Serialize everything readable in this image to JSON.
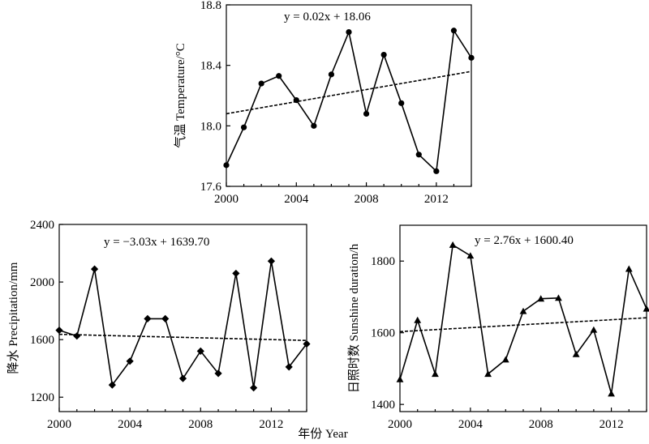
{
  "shared_xlabel": "年份 Year",
  "chart_data": [
    {
      "type": "line",
      "marker": "circle",
      "ylabel": "气温 Temperature/°C",
      "equation": "y = 0.02x + 18.06",
      "xlim": [
        2000,
        2014
      ],
      "ylim": [
        17.6,
        18.8
      ],
      "xticks": [
        2000,
        2004,
        2008,
        2012
      ],
      "yticks": [
        17.6,
        18.0,
        18.4,
        18.8
      ],
      "ytick_labels": [
        "17.6",
        "18.0",
        "18.4",
        "18.8"
      ],
      "x": [
        2000,
        2001,
        2002,
        2003,
        2004,
        2005,
        2006,
        2007,
        2008,
        2009,
        2010,
        2011,
        2012,
        2013,
        2014
      ],
      "y": [
        17.74,
        17.99,
        18.28,
        18.33,
        18.17,
        18.0,
        18.34,
        18.62,
        18.08,
        18.47,
        18.15,
        17.81,
        17.7,
        18.63,
        18.45
      ],
      "trend": {
        "slope": 0.02,
        "intercept": 18.06
      }
    },
    {
      "type": "line",
      "marker": "diamond",
      "ylabel": "降水 Precipitation/mm",
      "equation": "y = −3.03x + 1639.70",
      "xlim": [
        2000,
        2014
      ],
      "ylim": [
        1100,
        2400
      ],
      "xticks": [
        2000,
        2004,
        2008,
        2012
      ],
      "yticks": [
        1200,
        1600,
        2000,
        2400
      ],
      "ytick_labels": [
        "1200",
        "1600",
        "2000",
        "2400"
      ],
      "x": [
        2000,
        2001,
        2002,
        2003,
        2004,
        2005,
        2006,
        2007,
        2008,
        2009,
        2010,
        2011,
        2012,
        2013,
        2014
      ],
      "y": [
        1665,
        1625,
        2090,
        1285,
        1450,
        1745,
        1745,
        1330,
        1520,
        1365,
        2060,
        1265,
        2145,
        1410,
        1570
      ],
      "trend": {
        "slope": -3.03,
        "intercept": 1639.7
      }
    },
    {
      "type": "line",
      "marker": "triangle",
      "ylabel": "日照时数 Sunshine duration/h",
      "equation": "y = 2.76x + 1600.40",
      "xlim": [
        2000,
        2014
      ],
      "ylim": [
        1380,
        1900
      ],
      "xticks": [
        2000,
        2004,
        2008,
        2012
      ],
      "yticks": [
        1400,
        1600,
        1800
      ],
      "ytick_labels": [
        "1400",
        "1600",
        "1800"
      ],
      "x": [
        2000,
        2001,
        2002,
        2003,
        2004,
        2005,
        2006,
        2007,
        2008,
        2009,
        2010,
        2011,
        2012,
        2013,
        2014
      ],
      "y": [
        1470,
        1635,
        1485,
        1845,
        1815,
        1485,
        1525,
        1660,
        1695,
        1697,
        1540,
        1608,
        1430,
        1778,
        1667
      ],
      "trend": {
        "slope": 2.76,
        "intercept": 1600.4
      }
    }
  ]
}
